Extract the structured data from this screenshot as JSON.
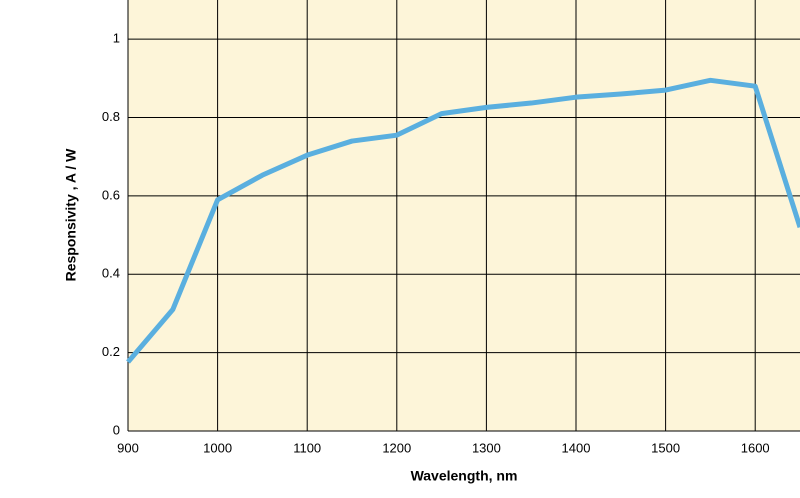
{
  "chart_data": {
    "type": "line",
    "x_label": "Wavelength, nm",
    "y_label": "Responsivity , A / W",
    "x": [
      900,
      950,
      1000,
      1050,
      1100,
      1150,
      1200,
      1250,
      1300,
      1350,
      1400,
      1450,
      1500,
      1550,
      1600,
      1650
    ],
    "values": [
      0.176,
      0.31,
      0.59,
      0.653,
      0.704,
      0.74,
      0.755,
      0.81,
      0.826,
      0.837,
      0.852,
      0.86,
      0.87,
      0.895,
      0.88,
      0.52
    ],
    "color": "#5aafdf",
    "xlim": [
      900,
      1650
    ],
    "ylim": [
      0,
      1.1
    ],
    "xticks": [
      900,
      1000,
      1100,
      1200,
      1300,
      1400,
      1500,
      1600
    ],
    "yticks": [
      0,
      0.2,
      0.4,
      0.6,
      0.8,
      1
    ],
    "grid": true
  }
}
